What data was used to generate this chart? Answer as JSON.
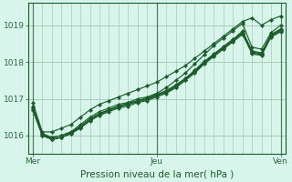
{
  "xlabel": "Pression niveau de la mer( hPa )",
  "bg_color": "#d8f5eb",
  "plot_bg_color": "#d8f5eb",
  "grid_color": "#aaccbb",
  "line_color": "#1a5c2a",
  "marker_color": "#1a5c2a",
  "tick_label_color": "#2d6a3f",
  "xlabel_color": "#1a5c2a",
  "ylim": [
    1015.5,
    1019.6
  ],
  "yticks": [
    1016,
    1017,
    1018,
    1019
  ],
  "xtick_positions": [
    0,
    13,
    26
  ],
  "xtick_labels": [
    "Mer",
    "Jeu",
    "Ven"
  ],
  "total_points": 27,
  "lines": [
    [
      1016.9,
      1016.1,
      1016.1,
      1016.2,
      1016.3,
      1016.5,
      1016.7,
      1016.85,
      1016.95,
      1017.05,
      1017.15,
      1017.25,
      1017.35,
      1017.45,
      1017.6,
      1017.75,
      1017.9,
      1018.1,
      1018.3,
      1018.5,
      1018.7,
      1018.9,
      1019.1,
      1019.2,
      1019.0,
      1019.15,
      1019.25
    ],
    [
      1016.8,
      1016.05,
      1015.95,
      1016.0,
      1016.1,
      1016.3,
      1016.5,
      1016.65,
      1016.75,
      1016.85,
      1016.9,
      1017.0,
      1017.05,
      1017.15,
      1017.3,
      1017.5,
      1017.7,
      1017.95,
      1018.2,
      1018.45,
      1018.65,
      1018.85,
      1019.05,
      1018.4,
      1018.35,
      1018.8,
      1019.0
    ],
    [
      1016.75,
      1016.0,
      1015.9,
      1015.95,
      1016.05,
      1016.25,
      1016.45,
      1016.6,
      1016.7,
      1016.8,
      1016.85,
      1016.95,
      1017.0,
      1017.1,
      1017.2,
      1017.35,
      1017.55,
      1017.75,
      1018.0,
      1018.2,
      1018.4,
      1018.6,
      1018.85,
      1018.3,
      1018.25,
      1018.75,
      1018.9
    ],
    [
      1016.7,
      1016.0,
      1015.9,
      1015.95,
      1016.05,
      1016.2,
      1016.4,
      1016.55,
      1016.65,
      1016.75,
      1016.8,
      1016.9,
      1016.95,
      1017.05,
      1017.15,
      1017.3,
      1017.5,
      1017.7,
      1017.95,
      1018.15,
      1018.35,
      1018.55,
      1018.75,
      1018.25,
      1018.2,
      1018.7,
      1018.85
    ],
    [
      1016.75,
      1016.05,
      1015.95,
      1016.0,
      1016.1,
      1016.25,
      1016.45,
      1016.6,
      1016.7,
      1016.8,
      1016.88,
      1016.95,
      1017.02,
      1017.12,
      1017.22,
      1017.38,
      1017.55,
      1017.78,
      1018.02,
      1018.22,
      1018.42,
      1018.62,
      1018.8,
      1018.28,
      1018.22,
      1018.72,
      1018.88
    ],
    [
      1016.7,
      1016.05,
      1015.9,
      1015.95,
      1016.08,
      1016.22,
      1016.42,
      1016.57,
      1016.68,
      1016.78,
      1016.85,
      1016.92,
      1016.98,
      1017.08,
      1017.18,
      1017.32,
      1017.52,
      1017.72,
      1017.98,
      1018.18,
      1018.38,
      1018.58,
      1018.78,
      1018.22,
      1018.18,
      1018.68,
      1018.82
    ]
  ]
}
